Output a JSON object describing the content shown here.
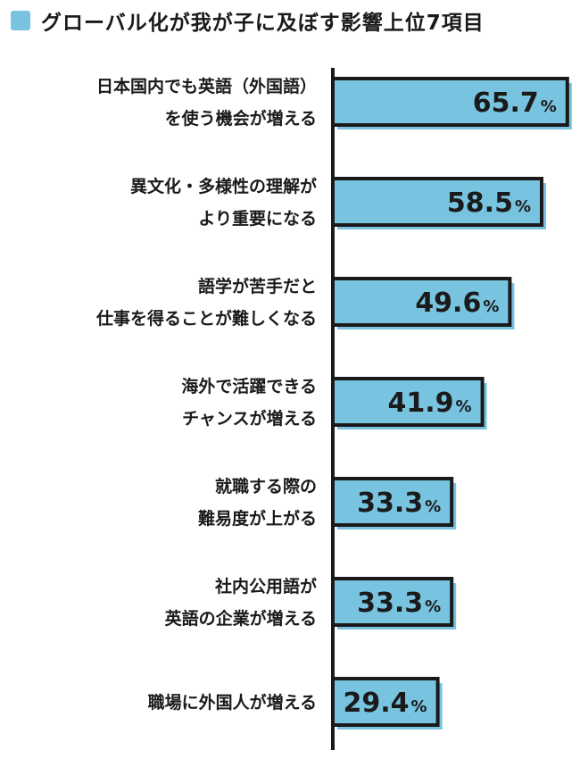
{
  "title": "グローバル化が我が子に及ぼす影響上位7項目",
  "colors": {
    "bar": "#78c3df",
    "outline": "#1a1a1a",
    "accent": "#78c3df"
  },
  "chart_data": {
    "type": "bar",
    "orientation": "horizontal",
    "title": "グローバル化が我が子に及ぼす影響上位7項目",
    "unit": "%",
    "xlim": [
      0,
      100
    ],
    "grid": false,
    "categories": [
      [
        "日本国内でも英語（外国語）",
        "を使う機会が増える"
      ],
      [
        "異文化・多様性の理解が",
        "より重要になる"
      ],
      [
        "語学が苦手だと",
        "仕事を得ることが難しくなる"
      ],
      [
        "海外で活躍できる",
        "チャンスが増える"
      ],
      [
        "就職する際の",
        "難易度が上がる"
      ],
      [
        "社内公用語が",
        "英語の企業が増える"
      ],
      [
        "職場に外国人が増える"
      ]
    ],
    "values": [
      65.7,
      58.5,
      49.6,
      41.9,
      33.3,
      33.3,
      29.4
    ]
  }
}
